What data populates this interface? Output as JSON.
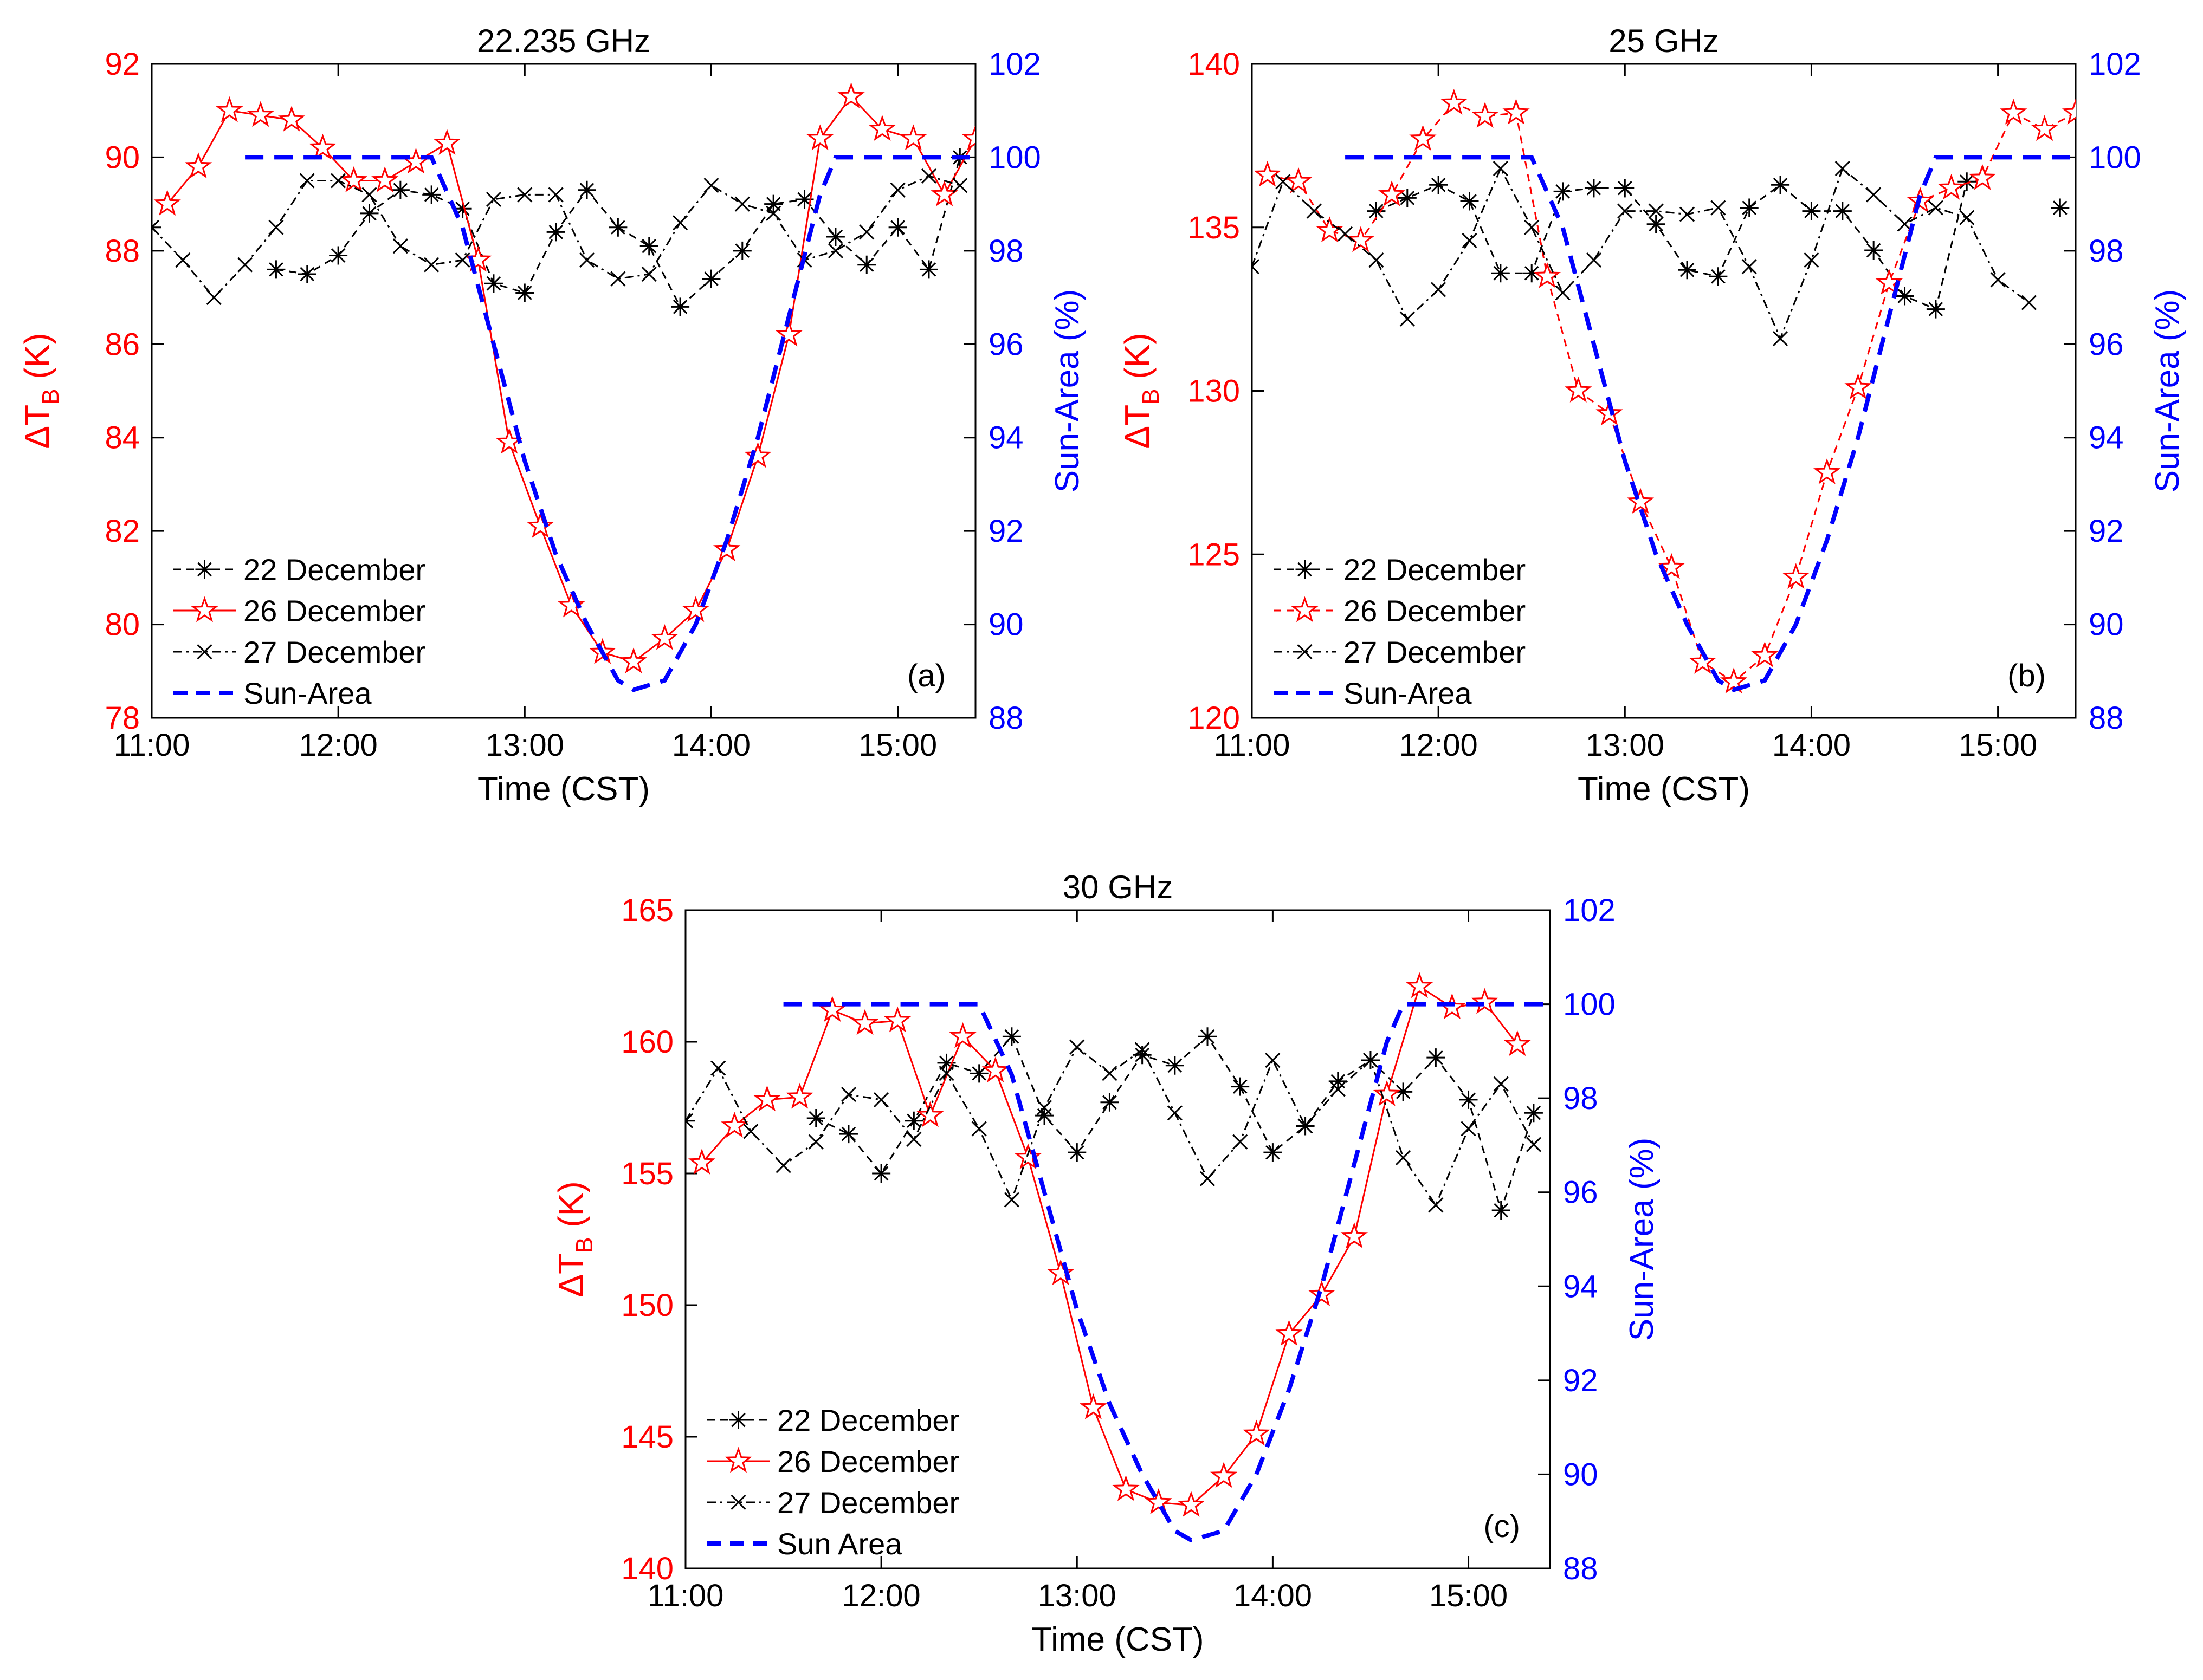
{
  "chart_data": [
    {
      "type": "line",
      "title": "22.235 GHz",
      "panel_label": "(a)",
      "xlabel": "Time (CST)",
      "ylabel": "ΔT",
      "ylabel_sub": "B",
      "ylabel_unit": "(K)",
      "y2label": "Sun-Area (%)",
      "xlim": [
        "11:00",
        "15:25"
      ],
      "ylim": [
        78,
        92
      ],
      "y2lim": [
        88,
        102
      ],
      "xticks": [
        "11:00",
        "12:00",
        "13:00",
        "14:00",
        "15:00"
      ],
      "yticks": [
        78,
        80,
        82,
        84,
        86,
        88,
        90,
        92
      ],
      "y2ticks": [
        88,
        90,
        92,
        94,
        96,
        98,
        100,
        102
      ],
      "colors": {
        "left_axis": "#ff0000",
        "right_axis": "#0000ff",
        "black": "#000000"
      },
      "legend_position": "bottom-left",
      "series": [
        {
          "name": "22 December",
          "axis": "left",
          "style": "dashed",
          "marker": "asterisk",
          "color": "#000000",
          "x": [
            "11:00",
            "11:10",
            "11:20",
            "11:30",
            "11:40",
            "11:50",
            "12:00",
            "12:10",
            "12:20",
            "12:30",
            "12:40",
            "12:50",
            "13:00",
            "13:10",
            "13:20",
            "13:30",
            "13:40",
            "13:50",
            "14:00",
            "14:10",
            "14:20",
            "14:30",
            "14:40",
            "14:50",
            "15:00",
            "15:10",
            "15:20"
          ],
          "values": [
            88.5,
            null,
            null,
            null,
            87.6,
            87.5,
            87.9,
            88.8,
            89.3,
            89.2,
            88.9,
            87.3,
            87.1,
            88.4,
            89.3,
            88.5,
            88.1,
            86.8,
            87.4,
            88.0,
            89.0,
            89.1,
            88.3,
            87.7,
            88.5,
            87.6,
            90.0
          ]
        },
        {
          "name": "26 December",
          "axis": "left",
          "style": "solid",
          "marker": "star",
          "color": "#ff0000",
          "x": [
            "11:05",
            "11:15",
            "11:25",
            "11:35",
            "11:45",
            "11:55",
            "12:05",
            "12:15",
            "12:25",
            "12:35",
            "12:45",
            "12:55",
            "13:05",
            "13:15",
            "13:25",
            "13:35",
            "13:45",
            "13:55",
            "14:05",
            "14:15",
            "14:25",
            "14:35",
            "14:45",
            "14:55",
            "15:05",
            "15:15",
            "15:25"
          ],
          "values": [
            89.0,
            89.8,
            91.0,
            90.9,
            90.8,
            90.2,
            89.5,
            89.5,
            89.9,
            90.3,
            87.8,
            83.9,
            82.1,
            80.4,
            79.4,
            79.2,
            79.7,
            80.3,
            81.6,
            83.6,
            86.2,
            90.4,
            91.3,
            90.6,
            90.4,
            89.2,
            90.4
          ]
        },
        {
          "name": "27 December",
          "axis": "left",
          "style": "dashdot",
          "marker": "x",
          "color": "#000000",
          "x": [
            "11:00",
            "11:10",
            "11:20",
            "11:30",
            "11:40",
            "11:50",
            "12:00",
            "12:10",
            "12:20",
            "12:30",
            "12:40",
            "12:50",
            "13:00",
            "13:10",
            "13:20",
            "13:30",
            "13:40",
            "13:50",
            "14:00",
            "14:10",
            "14:20",
            "14:30",
            "14:40",
            "14:50",
            "15:00",
            "15:10",
            "15:20"
          ],
          "values": [
            88.5,
            87.8,
            87.0,
            87.7,
            88.5,
            89.5,
            89.5,
            89.2,
            88.1,
            87.7,
            87.8,
            89.1,
            89.2,
            89.2,
            87.8,
            87.4,
            87.5,
            88.6,
            89.4,
            89.0,
            88.8,
            87.8,
            88.0,
            88.4,
            89.3,
            89.6,
            89.4
          ]
        },
        {
          "name": "Sun-Area",
          "axis": "right",
          "style": "dashed-thick",
          "marker": "none",
          "color": "#0000ff",
          "x": [
            "11:30",
            "12:30",
            "12:40",
            "12:50",
            "13:00",
            "13:10",
            "13:20",
            "13:30",
            "13:35",
            "13:45",
            "13:55",
            "14:05",
            "14:15",
            "14:25",
            "14:35",
            "14:40",
            "15:25"
          ],
          "values": [
            100,
            100,
            98.5,
            96.0,
            93.5,
            91.5,
            90.0,
            88.8,
            88.6,
            88.8,
            90.0,
            91.8,
            94.0,
            96.6,
            99.2,
            100,
            100
          ]
        }
      ]
    },
    {
      "type": "line",
      "title": "25 GHz",
      "panel_label": "(b)",
      "xlabel": "Time (CST)",
      "ylabel": "ΔT",
      "ylabel_sub": "B",
      "ylabel_unit": "(K)",
      "y2label": "Sun-Area (%)",
      "xlim": [
        "11:00",
        "15:25"
      ],
      "ylim": [
        120,
        140
      ],
      "y2lim": [
        88,
        102
      ],
      "xticks": [
        "11:00",
        "12:00",
        "13:00",
        "14:00",
        "15:00"
      ],
      "yticks": [
        120,
        125,
        130,
        135,
        140
      ],
      "y2ticks": [
        88,
        90,
        92,
        94,
        96,
        98,
        100,
        102
      ],
      "colors": {
        "left_axis": "#ff0000",
        "right_axis": "#0000ff",
        "black": "#000000"
      },
      "legend_position": "bottom-left",
      "series": [
        {
          "name": "22 December",
          "axis": "left",
          "style": "dashed",
          "marker": "asterisk",
          "color": "#000000",
          "x": [
            "11:40",
            "11:50",
            "12:00",
            "12:10",
            "12:20",
            "12:30",
            "12:40",
            "12:50",
            "13:00",
            "13:10",
            "13:20",
            "13:30",
            "13:40",
            "13:50",
            "14:00",
            "14:10",
            "14:20",
            "14:30",
            "14:40",
            "14:50",
            "15:00",
            "15:10",
            "15:20"
          ],
          "values": [
            135.5,
            135.9,
            136.3,
            135.8,
            133.6,
            133.6,
            136.1,
            136.2,
            136.2,
            135.1,
            133.7,
            133.5,
            135.6,
            136.3,
            135.5,
            135.5,
            134.3,
            132.9,
            132.5,
            136.4,
            null,
            null,
            135.6
          ]
        },
        {
          "name": "26 December",
          "axis": "left",
          "style": "dashed",
          "marker": "star",
          "color": "#ff0000",
          "x": [
            "11:05",
            "11:15",
            "11:25",
            "11:35",
            "11:45",
            "11:55",
            "12:05",
            "12:15",
            "12:25",
            "12:35",
            "12:45",
            "12:55",
            "13:05",
            "13:15",
            "13:25",
            "13:35",
            "13:45",
            "13:55",
            "14:05",
            "14:15",
            "14:25",
            "14:35",
            "14:45",
            "14:55",
            "15:05",
            "15:15",
            "15:25"
          ],
          "values": [
            136.6,
            136.4,
            134.9,
            134.6,
            136.0,
            137.7,
            138.8,
            138.4,
            138.5,
            133.5,
            130.0,
            129.3,
            126.6,
            124.6,
            121.7,
            121.1,
            121.9,
            124.3,
            127.5,
            130.1,
            133.3,
            135.8,
            136.2,
            136.5,
            138.5,
            138.0,
            138.5
          ]
        },
        {
          "name": "27 December",
          "axis": "left",
          "style": "dashdot",
          "marker": "x",
          "color": "#000000",
          "x": [
            "11:00",
            "11:10",
            "11:20",
            "11:30",
            "11:40",
            "11:50",
            "12:00",
            "12:10",
            "12:20",
            "12:30",
            "12:40",
            "12:50",
            "13:00",
            "13:10",
            "13:20",
            "13:30",
            "13:40",
            "13:50",
            "14:00",
            "14:10",
            "14:20",
            "14:30",
            "14:40",
            "14:50",
            "15:00",
            "15:10",
            "15:20",
            "15:30"
          ],
          "values": [
            133.8,
            136.4,
            135.5,
            134.8,
            134.0,
            132.2,
            133.1,
            134.6,
            136.8,
            135.0,
            133.0,
            134.0,
            135.5,
            135.5,
            135.4,
            135.6,
            133.8,
            131.6,
            134.0,
            136.8,
            136.0,
            135.1,
            135.6,
            135.3,
            133.4,
            132.7,
            null,
            null
          ]
        },
        {
          "name": "Sun-Area",
          "axis": "right",
          "style": "dashed-thick",
          "marker": "none",
          "color": "#0000ff",
          "x": [
            "11:30",
            "12:30",
            "12:40",
            "12:50",
            "13:00",
            "13:10",
            "13:20",
            "13:30",
            "13:35",
            "13:45",
            "13:55",
            "14:05",
            "14:15",
            "14:25",
            "14:35",
            "14:40",
            "15:25"
          ],
          "values": [
            100,
            100,
            98.5,
            96.0,
            93.5,
            91.5,
            90.0,
            88.8,
            88.6,
            88.8,
            90.0,
            91.8,
            94.0,
            96.6,
            99.2,
            100,
            100
          ]
        }
      ]
    },
    {
      "type": "line",
      "title": "30 GHz",
      "panel_label": "(c)",
      "xlabel": "Time (CST)",
      "ylabel": "ΔT",
      "ylabel_sub": "B",
      "ylabel_unit": "(K)",
      "y2label": "Sun-Area (%)",
      "xlim": [
        "11:00",
        "15:25"
      ],
      "ylim": [
        140,
        165
      ],
      "y2lim": [
        88,
        102
      ],
      "xticks": [
        "11:00",
        "12:00",
        "13:00",
        "14:00",
        "15:00"
      ],
      "yticks": [
        140,
        145,
        150,
        155,
        160,
        165
      ],
      "y2ticks": [
        88,
        90,
        92,
        94,
        96,
        98,
        100,
        102
      ],
      "colors": {
        "left_axis": "#ff0000",
        "right_axis": "#0000ff",
        "black": "#000000"
      },
      "legend_position": "bottom-left",
      "series": [
        {
          "name": "22 December",
          "axis": "left",
          "style": "dashed",
          "marker": "asterisk",
          "color": "#000000",
          "x": [
            "11:00",
            "11:10",
            "11:20",
            "11:30",
            "11:40",
            "11:50",
            "12:00",
            "12:10",
            "12:20",
            "12:30",
            "12:40",
            "12:50",
            "13:00",
            "13:10",
            "13:20",
            "13:30",
            "13:40",
            "13:50",
            "14:00",
            "14:10",
            "14:20",
            "14:30",
            "14:40",
            "14:50",
            "15:00",
            "15:10",
            "15:20"
          ],
          "values": [
            157.0,
            null,
            null,
            null,
            157.1,
            156.5,
            155.0,
            157.0,
            159.2,
            158.8,
            160.2,
            157.2,
            155.8,
            157.7,
            159.5,
            159.1,
            160.2,
            158.3,
            155.8,
            156.8,
            158.5,
            159.3,
            158.1,
            159.4,
            157.8,
            153.6,
            157.3
          ]
        },
        {
          "name": "26 December",
          "axis": "left",
          "style": "solid",
          "marker": "star",
          "color": "#ff0000",
          "x": [
            "11:05",
            "11:15",
            "11:25",
            "11:35",
            "11:45",
            "11:55",
            "12:05",
            "12:15",
            "12:25",
            "12:35",
            "12:45",
            "12:55",
            "13:05",
            "13:15",
            "13:25",
            "13:35",
            "13:45",
            "13:55",
            "14:05",
            "14:15",
            "14:25",
            "14:35",
            "14:45",
            "14:55",
            "15:05",
            "15:15"
          ],
          "values": [
            155.4,
            156.8,
            157.8,
            157.9,
            161.2,
            160.7,
            160.8,
            157.2,
            160.2,
            158.9,
            155.6,
            151.2,
            146.1,
            143.0,
            142.5,
            142.4,
            143.5,
            145.1,
            148.9,
            150.4,
            152.6,
            158.0,
            162.1,
            161.3,
            161.5,
            159.9
          ]
        },
        {
          "name": "27 December",
          "axis": "left",
          "style": "dashdot",
          "marker": "x",
          "color": "#000000",
          "x": [
            "11:00",
            "11:10",
            "11:20",
            "11:30",
            "11:40",
            "11:50",
            "12:00",
            "12:10",
            "12:20",
            "12:30",
            "12:40",
            "12:50",
            "13:00",
            "13:10",
            "13:20",
            "13:30",
            "13:40",
            "13:50",
            "14:00",
            "14:10",
            "14:20",
            "14:30",
            "14:40",
            "14:50",
            "15:00",
            "15:10",
            "15:20",
            "15:30"
          ],
          "values": [
            157.0,
            159.0,
            156.6,
            155.3,
            156.2,
            158.0,
            157.8,
            156.3,
            158.8,
            156.7,
            154.0,
            157.5,
            159.8,
            158.8,
            159.7,
            157.3,
            154.8,
            156.2,
            159.3,
            156.8,
            158.2,
            159.3,
            155.6,
            153.8,
            156.7,
            158.4,
            156.1,
            null
          ]
        },
        {
          "name": "Sun Area",
          "axis": "right",
          "style": "dashed-thick",
          "marker": "none",
          "color": "#0000ff",
          "x": [
            "11:30",
            "12:30",
            "12:40",
            "12:50",
            "13:00",
            "13:10",
            "13:20",
            "13:30",
            "13:35",
            "13:45",
            "13:55",
            "14:05",
            "14:15",
            "14:25",
            "14:35",
            "14:40",
            "15:25"
          ],
          "values": [
            100,
            100,
            98.5,
            96.0,
            93.5,
            91.5,
            90.0,
            88.8,
            88.6,
            88.8,
            90.0,
            91.8,
            94.0,
            96.6,
            99.2,
            100,
            100
          ]
        }
      ]
    }
  ]
}
